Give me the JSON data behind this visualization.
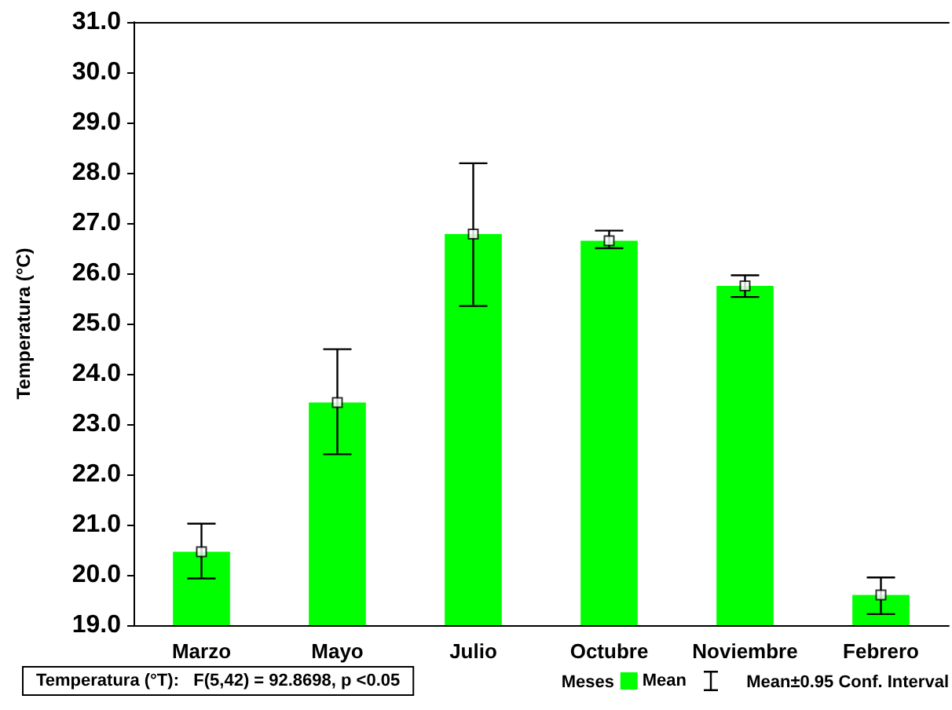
{
  "chart_data": {
    "type": "bar",
    "ylabel": "Temperatura (°C)",
    "legend_title": "Meses",
    "legend": "bottom right",
    "grid": false,
    "categories": [
      "Marzo",
      "Mayo",
      "Julio",
      "Octubre",
      "Noviembre",
      "Febrero"
    ],
    "ylim": [
      19,
      31
    ],
    "yticks": [
      {
        "value": 19,
        "label": "19.0"
      },
      {
        "value": 20,
        "label": "20.0"
      },
      {
        "value": 21,
        "label": "21.0"
      },
      {
        "value": 22,
        "label": "22.0"
      },
      {
        "value": 23,
        "label": "23.0"
      },
      {
        "value": 24,
        "label": "24.0"
      },
      {
        "value": 25,
        "label": "25.0"
      },
      {
        "value": 26,
        "label": "26.0"
      },
      {
        "value": 27,
        "label": "27.0"
      },
      {
        "value": 28,
        "label": "28.0"
      },
      {
        "value": 29,
        "label": "29.0"
      },
      {
        "value": 30,
        "label": "30.0"
      },
      {
        "value": 31,
        "label": "31.0"
      }
    ],
    "series": [
      {
        "name": "Mean",
        "color": "#00ff00",
        "values": [
          20.46,
          23.43,
          26.78,
          26.65,
          25.75,
          19.6
        ],
        "errors": [
          [
            19.93,
            21.02
          ],
          [
            22.4,
            24.49
          ],
          [
            25.35,
            28.19
          ],
          [
            26.5,
            26.85
          ],
          [
            25.53,
            25.96
          ],
          [
            19.22,
            19.95
          ]
        ]
      },
      {
        "type": "scatter",
        "marker": "square",
        "color": "#ffffff",
        "x": [
          "Marzo",
          "Mayo",
          "Julio",
          "Octubre",
          "Noviembre",
          "Febrero"
        ],
        "values": [
          20.46,
          23.43,
          26.78,
          26.65,
          25.75,
          19.6
        ]
      }
    ],
    "annotations": [
      "Mean±0.95 Conf. Interval",
      "Temperatura (°T):   F(5,42) = 92.8698, p <0.05"
    ]
  }
}
